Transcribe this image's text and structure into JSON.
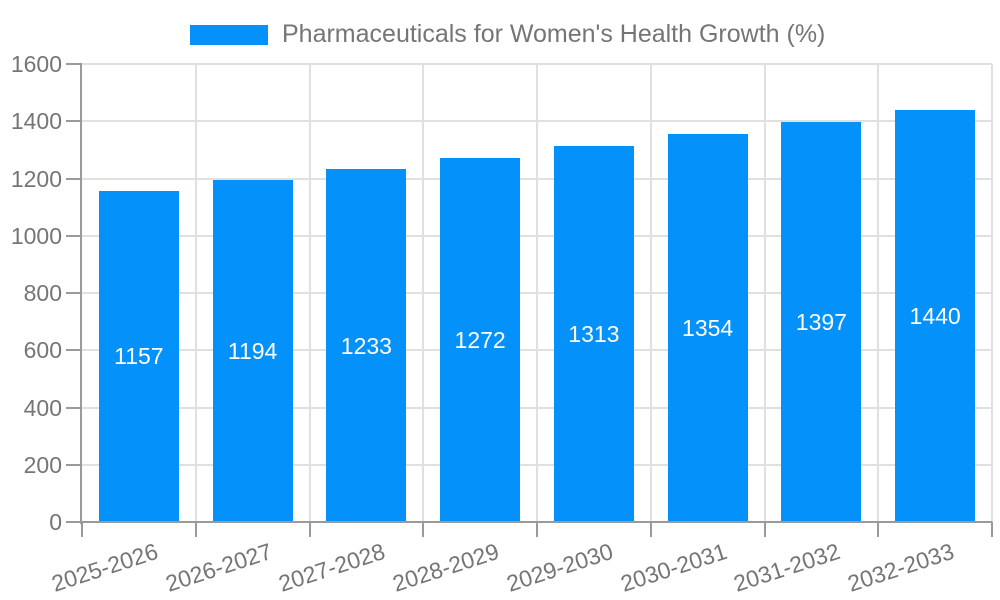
{
  "chart_data": {
    "type": "bar",
    "title": "",
    "legend_label": "Pharmaceuticals for Women's Health Growth (%)",
    "legend_position": "top",
    "categories": [
      "2025-2026",
      "2026-2027",
      "2027-2028",
      "2028-2029",
      "2029-2030",
      "2030-2031",
      "2031-2032",
      "2032-2033"
    ],
    "values": [
      1157,
      1194,
      1233,
      1272,
      1313,
      1354,
      1397,
      1440
    ],
    "data_labels": [
      "1157",
      "1194",
      "1233",
      "1272",
      "1313",
      "1354",
      "1397",
      "1440"
    ],
    "xlabel": "",
    "ylabel": "",
    "ylim": [
      0,
      1600
    ],
    "yticks": [
      0,
      200,
      400,
      600,
      800,
      1000,
      1200,
      1400,
      1600
    ],
    "grid": true,
    "x_label_rotation_deg": -18,
    "colors": {
      "bar": "#0591fa",
      "grid_line": "#e0e0e0",
      "axis_line": "#9a9a9a",
      "tick_text": "#757575",
      "legend_text": "#757575",
      "value_label_text": "#ffffff",
      "background": "#ffffff"
    }
  }
}
